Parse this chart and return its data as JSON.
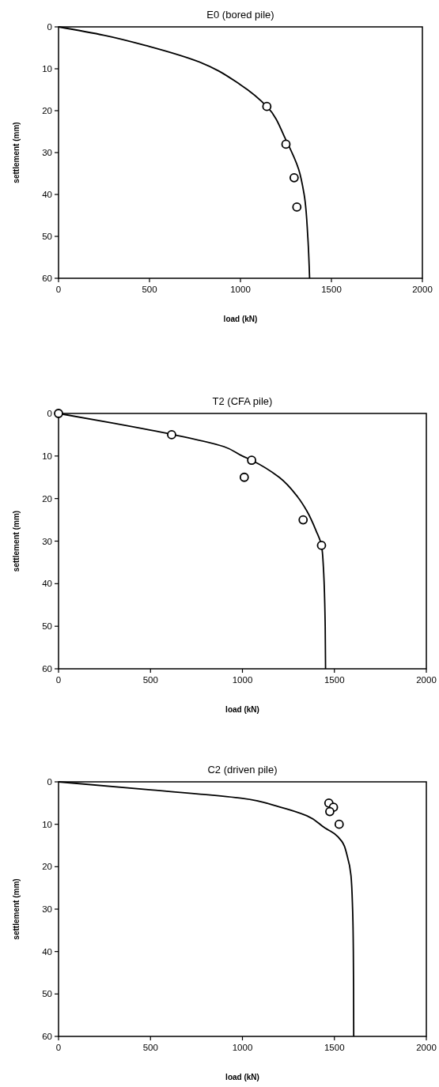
{
  "chart_data": [
    {
      "type": "line",
      "title": "E0 (bored pile)",
      "xlabel": "load (kN)",
      "ylabel": "settlement (mm)",
      "xlim": [
        0,
        2000
      ],
      "xticks": [
        0,
        500,
        1000,
        1500,
        2000
      ],
      "ylim": [
        60,
        0
      ],
      "yticks": [
        0,
        10,
        20,
        30,
        40,
        50,
        60
      ],
      "series": [
        {
          "type": "line",
          "color": "#000000",
          "line_style": "solid",
          "x": [
            0,
            250,
            500,
            750,
            1000,
            1145,
            1250,
            1320,
            1350,
            1370,
            1380
          ],
          "values": [
            0,
            2,
            4.7,
            8,
            13.8,
            19,
            27,
            34,
            40,
            50,
            60
          ]
        },
        {
          "type": "scatter",
          "color": "#000000",
          "marker": "circle",
          "x": [
            1145,
            1250,
            1295,
            1310
          ],
          "values": [
            19,
            28,
            36,
            43
          ]
        }
      ]
    },
    {
      "type": "line",
      "title": "T2 (CFA pile)",
      "xlabel": "load (kN)",
      "ylabel": "settlement (mm)",
      "xlim": [
        0,
        2000
      ],
      "xticks": [
        0,
        500,
        1000,
        1500,
        2000
      ],
      "ylim": [
        60,
        0
      ],
      "yticks": [
        0,
        10,
        20,
        30,
        40,
        50,
        60
      ],
      "series": [
        {
          "type": "line",
          "color": "#000000",
          "line_style": "solid",
          "x": [
            0,
            300,
            615,
            900,
            1000,
            1050,
            1200,
            1300,
            1350,
            1400,
            1430,
            1440,
            1450,
            1452
          ],
          "values": [
            0,
            2.3,
            4.9,
            7.8,
            10,
            11,
            15,
            19.6,
            22.9,
            27.5,
            31,
            36,
            50,
            60
          ]
        },
        {
          "type": "scatter",
          "color": "#000000",
          "marker": "circle",
          "x": [
            0,
            615,
            1050,
            1010,
            1330,
            1430
          ],
          "values": [
            0,
            5,
            11,
            15,
            25,
            31
          ]
        }
      ]
    },
    {
      "type": "line",
      "title": "C2 (driven pile)",
      "xlabel": "load (kN)",
      "ylabel": "settlement (mm)",
      "xlim": [
        0,
        2000
      ],
      "xticks": [
        0,
        500,
        1000,
        1500,
        2000
      ],
      "ylim": [
        60,
        0
      ],
      "yticks": [
        0,
        10,
        20,
        30,
        40,
        50,
        60
      ],
      "series": [
        {
          "type": "line",
          "color": "#000000",
          "line_style": "solid",
          "x": [
            0,
            500,
            1000,
            1200,
            1350,
            1450,
            1500,
            1540,
            1570,
            1590,
            1599,
            1603,
            1605
          ],
          "values": [
            0,
            1.9,
            3.9,
            5.9,
            8,
            10.9,
            12.2,
            14,
            17.5,
            22,
            30,
            40,
            60
          ]
        },
        {
          "type": "scatter",
          "color": "#000000",
          "marker": "circle",
          "x": [
            1470,
            1495,
            1475,
            1526
          ],
          "values": [
            5,
            6,
            7,
            10
          ]
        }
      ]
    }
  ]
}
